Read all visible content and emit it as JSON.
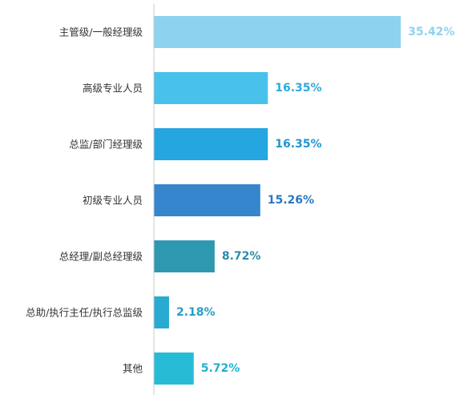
{
  "chart_data": {
    "type": "bar",
    "orientation": "horizontal",
    "categories": [
      "主管级/一般经理级",
      "高级专业人员",
      "总监/部门经理级",
      "初级专业人员",
      "总经理/副总经理级",
      "总助/执行主任/执行总监级",
      "其他"
    ],
    "values": [
      35.42,
      16.35,
      16.35,
      15.26,
      8.72,
      2.18,
      5.72
    ],
    "value_labels": [
      "35.42%",
      "16.35%",
      "16.35%",
      "15.26%",
      "8.72%",
      "2.18%",
      "5.72%"
    ],
    "bar_colors": [
      "#8DD3F0",
      "#48C1EC",
      "#25A6E0",
      "#3586CC",
      "#2E98B0",
      "#28ABD0",
      "#26BCD6"
    ],
    "label_colors": [
      "#8DD3F0",
      "#2EA9DD",
      "#2395D2",
      "#2A78C0",
      "#2A8EA9",
      "#259FC4",
      "#23AFCC"
    ],
    "xlim": [
      0,
      40
    ],
    "grid": false,
    "legend": "none"
  }
}
